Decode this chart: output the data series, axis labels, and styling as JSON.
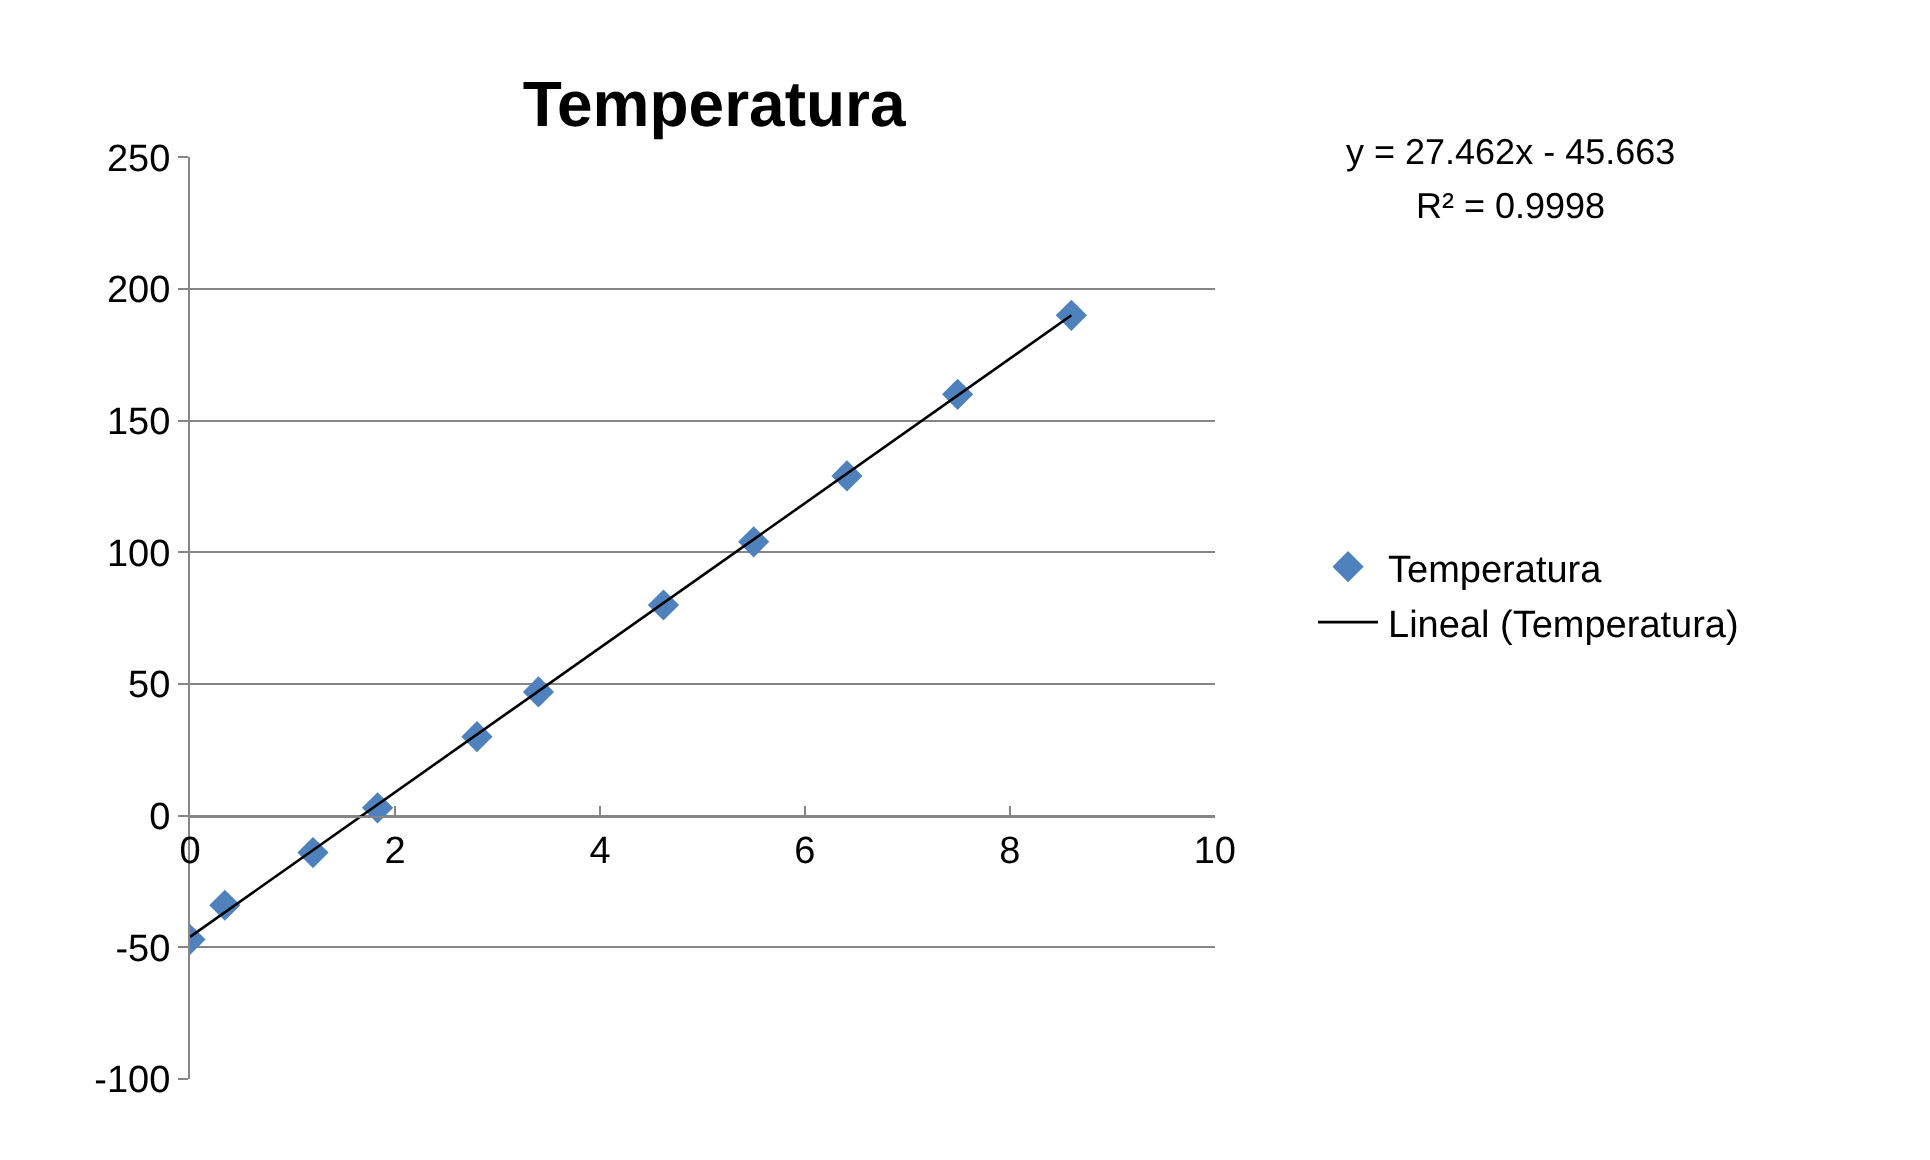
{
  "chart_data": {
    "type": "scatter",
    "title": "Temperatura",
    "series": [
      {
        "name": "Temperatura",
        "color": "#4f81bd",
        "marker": "diamond",
        "x": [
          0,
          0.34,
          1.2,
          1.83,
          2.8,
          3.4,
          4.62,
          5.5,
          6.41,
          7.49,
          8.6
        ],
        "values": [
          -47,
          -34,
          -14,
          3,
          30,
          47,
          80,
          104,
          129,
          160,
          190
        ]
      },
      {
        "name": "Lineal (Temperatura)",
        "type": "line",
        "color": "#000000",
        "marker": "none",
        "line_style": "solid",
        "x": [
          0,
          8.6
        ],
        "values": [
          -46,
          190
        ]
      }
    ],
    "annotations": [
      "y = 27.462x - 45.663",
      "R² = 0.9998"
    ],
    "xlim": [
      0,
      10
    ],
    "xticks": [
      0,
      2,
      4,
      6,
      8,
      10
    ],
    "ylim": [
      -100,
      250
    ],
    "yticks": [
      -100,
      -50,
      0,
      50,
      100,
      150,
      200,
      250
    ],
    "grid": "y",
    "legend": "right"
  }
}
